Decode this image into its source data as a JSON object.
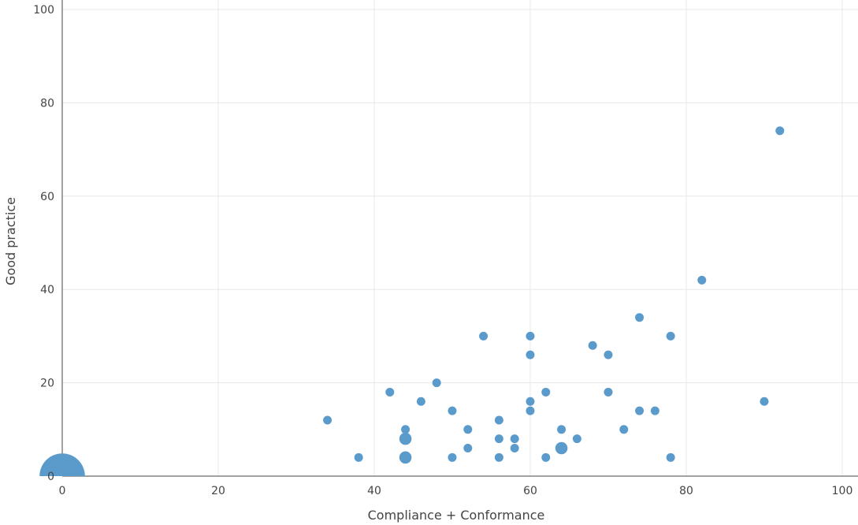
{
  "chart_data": {
    "type": "scatter",
    "xlabel": "Compliance + Conformance",
    "ylabel": "Good practice",
    "xlim": [
      0,
      100
    ],
    "ylim": [
      0,
      100
    ],
    "xticks": [
      "0",
      "20",
      "40",
      "60",
      "80",
      "100"
    ],
    "yticks": [
      "0",
      "20",
      "40",
      "60",
      "80",
      "100"
    ],
    "grid": true,
    "legend": "none",
    "marker_color": "#5b9bcc",
    "gridline_color": "#e8e8e8",
    "axis_color": "#444444",
    "series": [
      {
        "points": [
          {
            "x": 0,
            "y": 0,
            "count": 14
          },
          {
            "x": 34,
            "y": 12,
            "count": 1
          },
          {
            "x": 38,
            "y": 4,
            "count": 1
          },
          {
            "x": 42,
            "y": 18,
            "count": 1
          },
          {
            "x": 44,
            "y": 10,
            "count": 1
          },
          {
            "x": 44,
            "y": 8,
            "count": 2
          },
          {
            "x": 44,
            "y": 4,
            "count": 2
          },
          {
            "x": 46,
            "y": 16,
            "count": 1
          },
          {
            "x": 48,
            "y": 20,
            "count": 1
          },
          {
            "x": 50,
            "y": 14,
            "count": 1
          },
          {
            "x": 50,
            "y": 4,
            "count": 1
          },
          {
            "x": 52,
            "y": 10,
            "count": 1
          },
          {
            "x": 52,
            "y": 6,
            "count": 1
          },
          {
            "x": 54,
            "y": 30,
            "count": 1
          },
          {
            "x": 56,
            "y": 12,
            "count": 1
          },
          {
            "x": 56,
            "y": 8,
            "count": 1
          },
          {
            "x": 56,
            "y": 4,
            "count": 1
          },
          {
            "x": 58,
            "y": 8,
            "count": 1
          },
          {
            "x": 58,
            "y": 6,
            "count": 1
          },
          {
            "x": 60,
            "y": 30,
            "count": 1
          },
          {
            "x": 60,
            "y": 26,
            "count": 1
          },
          {
            "x": 60,
            "y": 16,
            "count": 1
          },
          {
            "x": 60,
            "y": 14,
            "count": 1
          },
          {
            "x": 62,
            "y": 18,
            "count": 1
          },
          {
            "x": 62,
            "y": 4,
            "count": 1
          },
          {
            "x": 64,
            "y": 10,
            "count": 1
          },
          {
            "x": 64,
            "y": 6,
            "count": 2
          },
          {
            "x": 66,
            "y": 8,
            "count": 1
          },
          {
            "x": 68,
            "y": 28,
            "count": 1
          },
          {
            "x": 70,
            "y": 26,
            "count": 1
          },
          {
            "x": 70,
            "y": 18,
            "count": 1
          },
          {
            "x": 72,
            "y": 10,
            "count": 1
          },
          {
            "x": 74,
            "y": 34,
            "count": 1
          },
          {
            "x": 74,
            "y": 14,
            "count": 1
          },
          {
            "x": 76,
            "y": 14,
            "count": 1
          },
          {
            "x": 78,
            "y": 30,
            "count": 1
          },
          {
            "x": 78,
            "y": 4,
            "count": 1
          },
          {
            "x": 82,
            "y": 42,
            "count": 1
          },
          {
            "x": 90,
            "y": 16,
            "count": 1
          },
          {
            "x": 92,
            "y": 74,
            "count": 1
          }
        ]
      }
    ]
  }
}
